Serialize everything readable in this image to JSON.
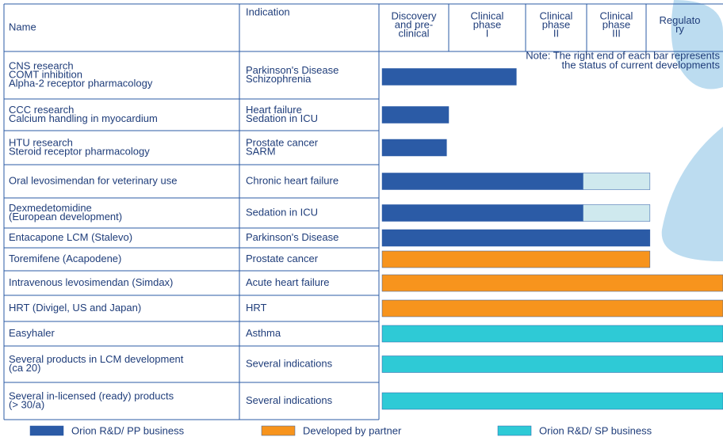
{
  "header": {
    "name": "Name",
    "indication": "Indication",
    "phases": [
      [
        "Discovery",
        "and pre-",
        "clinical"
      ],
      [
        "Clinical",
        "phase",
        "I"
      ],
      [
        "Clinical",
        "phase",
        "II"
      ],
      [
        "Clinical",
        "phase",
        "III"
      ],
      [
        "Regulato",
        "ry"
      ]
    ]
  },
  "note": [
    "Note: The right end of each bar represents",
    "the status of current developments"
  ],
  "rows": [
    {
      "name": [
        "CNS research",
        "COMT inhibition",
        "Alpha-2 receptor pharmacology"
      ],
      "indication": [
        "Parkinson's Disease",
        "Schizophrenia"
      ],
      "group": 0,
      "stage": 1.88
    },
    {
      "name": [
        "CCC research",
        "Calcium handling in myocardium"
      ],
      "indication": [
        "Heart failure",
        "Sedation in ICU"
      ],
      "group": 0,
      "stage": 1.0
    },
    {
      "name": [
        "HTU research",
        "Steroid receptor pharmacology"
      ],
      "indication": [
        "Prostate cancer",
        "SARM"
      ],
      "group": 0,
      "stage": 0.97
    },
    {
      "name": [
        "Oral levosimendan for veterinary use"
      ],
      "indication": [
        "Chronic heart failure"
      ],
      "group": 0,
      "stage": 2.94,
      "extension": 4.05
    },
    {
      "name": [
        "Dexmedetomidine",
        "(European development)"
      ],
      "indication": [
        "Sedation in ICU"
      ],
      "group": 0,
      "stage": 2.94,
      "extension": 4.05
    },
    {
      "name": [
        "Entacapone LCM (Stalevo)"
      ],
      "indication": [
        "Parkinson's Disease"
      ],
      "group": 0,
      "stage": 4.05
    },
    {
      "name": [
        "Toremifene (Acapodene)"
      ],
      "indication": [
        "Prostate cancer"
      ],
      "group": 1,
      "stage": 4.05
    },
    {
      "name": [
        "Intravenous levosimendan (Simdax)"
      ],
      "indication": [
        "Acute heart failure"
      ],
      "group": 1,
      "stage": 5
    },
    {
      "name": [
        "HRT  (Divigel, US and Japan)"
      ],
      "indication": [
        "HRT"
      ],
      "group": 1,
      "stage": 5
    },
    {
      "name": [
        "Easyhaler"
      ],
      "indication": [
        "Asthma"
      ],
      "group": 2,
      "stage": 5
    },
    {
      "name": [
        "Several  products in LCM development",
        "(ca 20)"
      ],
      "indication": [
        "Several indications"
      ],
      "group": 2,
      "stage": 5
    },
    {
      "name": [
        "Several in-licensed (ready) products",
        "(> 30/a)"
      ],
      "indication": [
        "Several indications"
      ],
      "group": 2,
      "stage": 5
    }
  ],
  "extension_color": "#cfe9ee",
  "legend": [
    {
      "label": "Orion R&D/ PP business",
      "color": "#2b5ba6"
    },
    {
      "label": "Developed by partner",
      "color": "#f7941d"
    },
    {
      "label": "Orion R&D/ SP business",
      "color": "#2ecad6"
    }
  ]
}
